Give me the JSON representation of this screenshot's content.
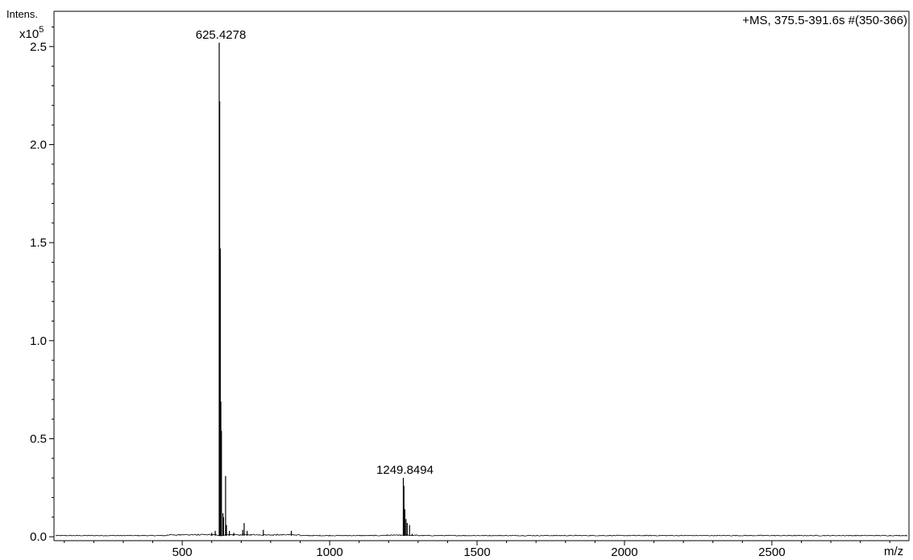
{
  "chart_data": {
    "type": "line",
    "title": "+MS, 375.5-391.6s #(350-366)",
    "ylabel": "Intens.",
    "yscale_label": "x10",
    "yscale_exp": "5",
    "xlabel": "m/z",
    "xlim": [
      65,
      2965
    ],
    "ylim": [
      -0.02,
      2.68
    ],
    "y_ticks": [
      0.0,
      0.5,
      1.0,
      1.5,
      2.0,
      2.5
    ],
    "y_tick_labels": [
      "0.0",
      "0.5",
      "1.0",
      "1.5",
      "2.0",
      "2.5"
    ],
    "x_ticks": [
      500,
      1000,
      1500,
      2000,
      2500
    ],
    "x_tick_labels": [
      "500",
      "1000",
      "1500",
      "2000",
      "2500"
    ],
    "grid": false,
    "legend": "none",
    "peaks": [
      {
        "x": 600,
        "y": 0.02
      },
      {
        "x": 612,
        "y": 0.03
      },
      {
        "x": 625.4278,
        "y": 2.52
      },
      {
        "x": 627,
        "y": 2.22
      },
      {
        "x": 629,
        "y": 1.47
      },
      {
        "x": 631,
        "y": 0.69
      },
      {
        "x": 633,
        "y": 0.54
      },
      {
        "x": 638,
        "y": 0.12
      },
      {
        "x": 640,
        "y": 0.1
      },
      {
        "x": 647,
        "y": 0.31
      },
      {
        "x": 650,
        "y": 0.06
      },
      {
        "x": 660,
        "y": 0.03
      },
      {
        "x": 675,
        "y": 0.02
      },
      {
        "x": 705,
        "y": 0.035
      },
      {
        "x": 710,
        "y": 0.07
      },
      {
        "x": 720,
        "y": 0.03
      },
      {
        "x": 775,
        "y": 0.035
      },
      {
        "x": 870,
        "y": 0.03
      },
      {
        "x": 1249.8494,
        "y": 0.3
      },
      {
        "x": 1252,
        "y": 0.26
      },
      {
        "x": 1255,
        "y": 0.14
      },
      {
        "x": 1259,
        "y": 0.09
      },
      {
        "x": 1263,
        "y": 0.07
      },
      {
        "x": 1271,
        "y": 0.06
      },
      {
        "x": 1280,
        "y": 0.015
      }
    ],
    "annotations": [
      {
        "x": 625.4278,
        "y": 2.52,
        "text": "625.4278"
      },
      {
        "x": 1249.8494,
        "y": 0.3,
        "text": "1249.8494"
      }
    ],
    "line_color": "#000000"
  }
}
